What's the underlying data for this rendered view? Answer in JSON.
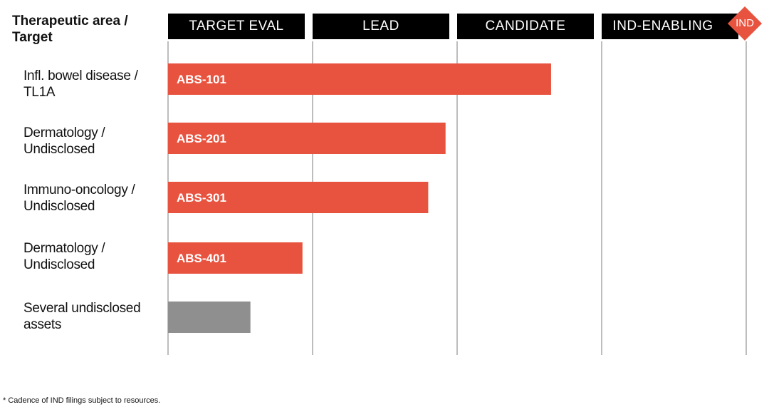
{
  "header": {
    "title": "Therapeutic area / Target"
  },
  "chart_data": {
    "type": "bar",
    "orientation": "horizontal",
    "stages": [
      "TARGET EVAL",
      "LEAD",
      "CANDIDATE",
      "IND-ENABLING"
    ],
    "milestone": "IND",
    "xlim": [
      0,
      4
    ],
    "grid": true,
    "programs": [
      {
        "area": "Infl. bowel disease / TL1A",
        "name": "ABS-101",
        "progress": 2.65,
        "color": "#e8533f"
      },
      {
        "area": "Dermatology / Undisclosed",
        "name": "ABS-201",
        "progress": 1.92,
        "color": "#e8533f"
      },
      {
        "area": "Immuno-oncology / Undisclosed",
        "name": "ABS-301",
        "progress": 1.8,
        "color": "#e8533f"
      },
      {
        "area": "Dermatology / Undisclosed",
        "name": "ABS-401",
        "progress": 0.93,
        "color": "#e8533f"
      },
      {
        "area": "Several undisclosed assets",
        "name": "",
        "progress": 0.57,
        "color": "#8f8f8f"
      }
    ]
  },
  "footnote": "* Cadence of IND filings subject to resources."
}
